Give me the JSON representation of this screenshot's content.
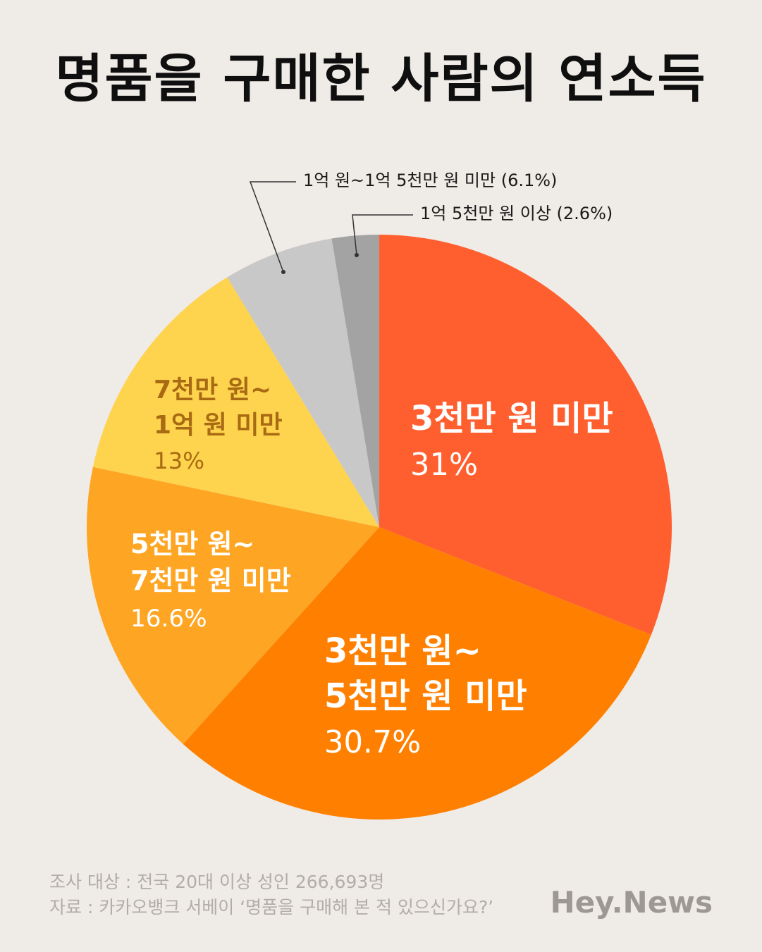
{
  "title": "명품을 구매한 사람의 연소득",
  "chart_data": {
    "type": "pie",
    "title": "명품을 구매한 사람의 연소득",
    "slices": [
      {
        "lines": [
          "3천만 원 미만"
        ],
        "percent_label": "31%",
        "value": 31.0,
        "color": "#ff5f2f",
        "text_color": "#ffffff",
        "label_style": "inside"
      },
      {
        "lines": [
          "3천만 원~",
          "5천만 원 미만"
        ],
        "percent_label": "30.7%",
        "value": 30.7,
        "color": "#ff8000",
        "text_color": "#ffffff",
        "label_style": "inside"
      },
      {
        "lines": [
          "5천만 원~",
          "7천만 원 미만"
        ],
        "percent_label": "16.6%",
        "value": 16.6,
        "color": "#fea623",
        "text_color": "#ffffff",
        "label_style": "inside"
      },
      {
        "lines": [
          "7천만 원~",
          "1억 원 미만"
        ],
        "percent_label": "13%",
        "value": 13.0,
        "color": "#fed34d",
        "text_color": "#a86a12",
        "label_style": "inside"
      },
      {
        "lines": [
          "1억 원~1억 5천만 원 미만 (6.1%)"
        ],
        "percent_label": "",
        "value": 6.1,
        "color": "#c8c8c8",
        "text_color": "#1a1a1a",
        "label_style": "callout"
      },
      {
        "lines": [
          "1억 5천만 원 이상 (2.6%)"
        ],
        "percent_label": "",
        "value": 2.6,
        "color": "#a3a3a3",
        "text_color": "#1a1a1a",
        "label_style": "callout"
      }
    ]
  },
  "footer": {
    "survey": "조사 대상 : 전국 20대 이상 성인 266,693명",
    "source": "자료 : 카카오뱅크 서베이 ‘명품을 구매해 본 적 있으신가요?’"
  },
  "brand": "Hey.News"
}
